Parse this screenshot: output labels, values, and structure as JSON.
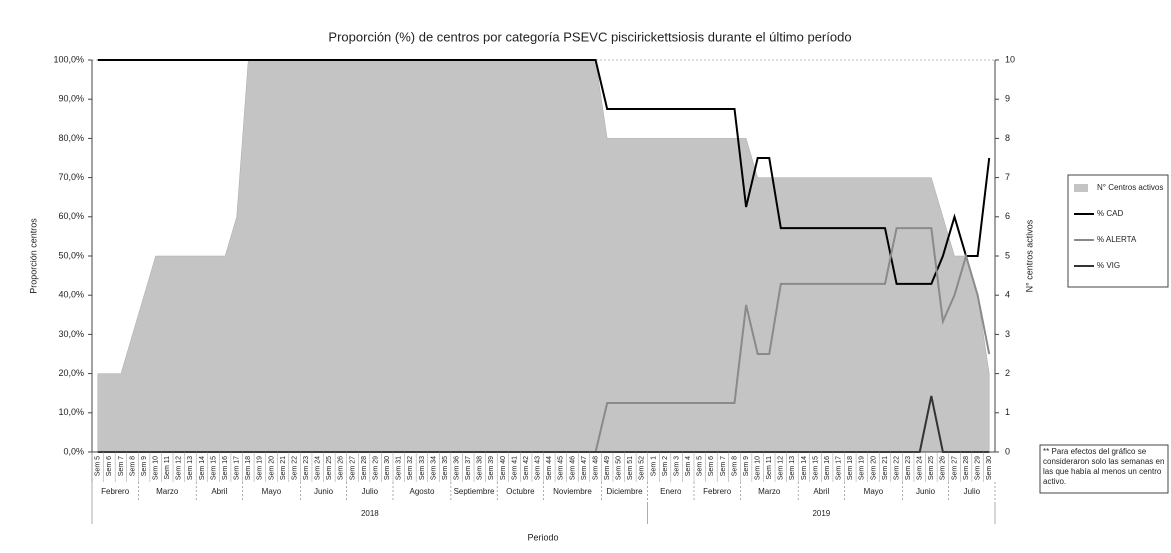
{
  "chart_data": {
    "type": "line",
    "title": "Proporción (%) de centros por categoría PSEVC piscirickettsiosis durante el último período",
    "y_label": "Proporción centros",
    "y2_label": "N° centros activos",
    "x_label": "Periodo",
    "note": "** Para efectos del gráfico se consideraron solo las semanas en las que había al menos un centro activo.",
    "categories": [
      "Sem 5",
      "Sem 6",
      "Sem 7",
      "Sem 8",
      "Sem 9",
      "Sem 10",
      "Sem 11",
      "Sem 12",
      "Sem 13",
      "Sem 14",
      "Sem 15",
      "Sem 16",
      "Sem 17",
      "Sem 18",
      "Sem 19",
      "Sem 20",
      "Sem 21",
      "Sem 22",
      "Sem 23",
      "Sem 24",
      "Sem 25",
      "Sem 26",
      "Sem 27",
      "Sem 28",
      "Sem 29",
      "Sem 30",
      "Sem 31",
      "Sem 32",
      "Sem 33",
      "Sem 34",
      "Sem 35",
      "Sem 36",
      "Sem 37",
      "Sem 38",
      "Sem 39",
      "Sem 40",
      "Sem 41",
      "Sem 42",
      "Sem 43",
      "Sem 44",
      "Sem 45",
      "Sem 46",
      "Sem 47",
      "Sem 48",
      "Sem 49",
      "Sem 50",
      "Sem 51",
      "Sem 52",
      "Sem 1",
      "Sem 2",
      "Sem 3",
      "Sem 4",
      "Sem 5",
      "Sem 6",
      "Sem 7",
      "Sem 8",
      "Sem 9",
      "Sem 10",
      "Sem 11",
      "Sem 12",
      "Sem 13",
      "Sem 14",
      "Sem 15",
      "Sem 16",
      "Sem 17",
      "Sem 18",
      "Sem 19",
      "Sem 20",
      "Sem 21",
      "Sem 22",
      "Sem 23",
      "Sem 24",
      "Sem 25",
      "Sem 26",
      "Sem 27",
      "Sem 28",
      "Sem 29",
      "Sem 30"
    ],
    "month_groups": [
      {
        "label": "Febrero",
        "weeks": 4
      },
      {
        "label": "Marzo",
        "weeks": 5
      },
      {
        "label": "Abril",
        "weeks": 4
      },
      {
        "label": "Mayo",
        "weeks": 5
      },
      {
        "label": "Junio",
        "weeks": 4
      },
      {
        "label": "Julio",
        "weeks": 4
      },
      {
        "label": "Agosto",
        "weeks": 5
      },
      {
        "label": "Septiembre",
        "weeks": 4
      },
      {
        "label": "Octubre",
        "weeks": 4
      },
      {
        "label": "Noviembre",
        "weeks": 5
      },
      {
        "label": "Diciembre",
        "weeks": 4
      },
      {
        "label": "Enero",
        "weeks": 4
      },
      {
        "label": "Febrero",
        "weeks": 4
      },
      {
        "label": "Marzo",
        "weeks": 5
      },
      {
        "label": "Abril",
        "weeks": 4
      },
      {
        "label": "Mayo",
        "weeks": 5
      },
      {
        "label": "Junio",
        "weeks": 4
      },
      {
        "label": "Julio",
        "weeks": 4
      }
    ],
    "year_groups": [
      {
        "label": "2018",
        "weeks": 48
      },
      {
        "label": "2019",
        "weeks": 30
      }
    ],
    "series": [
      {
        "name": "N° Centros activos",
        "kind": "area",
        "axis": "y2",
        "color": "#c4c4c4",
        "values": [
          2,
          2,
          2,
          3,
          4,
          5,
          5,
          5,
          5,
          5,
          5,
          5,
          6,
          10,
          10,
          10,
          10,
          10,
          10,
          10,
          10,
          10,
          10,
          10,
          10,
          10,
          10,
          10,
          10,
          10,
          10,
          10,
          10,
          10,
          10,
          10,
          10,
          10,
          10,
          10,
          10,
          10,
          10,
          10,
          8,
          8,
          8,
          8,
          8,
          8,
          8,
          8,
          8,
          8,
          8,
          8,
          8,
          7,
          7,
          7,
          7,
          7,
          7,
          7,
          7,
          7,
          7,
          7,
          7,
          7,
          7,
          7,
          7,
          6,
          5,
          5,
          4,
          2
        ]
      },
      {
        "name": "% CAD",
        "kind": "line",
        "color": "#000000",
        "values": [
          100,
          100,
          100,
          100,
          100,
          100,
          100,
          100,
          100,
          100,
          100,
          100,
          100,
          100,
          100,
          100,
          100,
          100,
          100,
          100,
          100,
          100,
          100,
          100,
          100,
          100,
          100,
          100,
          100,
          100,
          100,
          100,
          100,
          100,
          100,
          100,
          100,
          100,
          100,
          100,
          100,
          100,
          100,
          100,
          87.5,
          87.5,
          87.5,
          87.5,
          87.5,
          87.5,
          87.5,
          87.5,
          87.5,
          87.5,
          87.5,
          87.5,
          62.5,
          75,
          75,
          57.1,
          57.1,
          57.1,
          57.1,
          57.1,
          57.1,
          57.1,
          57.1,
          57.1,
          57.1,
          42.9,
          42.9,
          42.9,
          42.9,
          50,
          60,
          50,
          50,
          75
        ]
      },
      {
        "name": "% ALERTA",
        "kind": "line",
        "color": "#8a8a8a",
        "values": [
          0,
          0,
          0,
          0,
          0,
          0,
          0,
          0,
          0,
          0,
          0,
          0,
          0,
          0,
          0,
          0,
          0,
          0,
          0,
          0,
          0,
          0,
          0,
          0,
          0,
          0,
          0,
          0,
          0,
          0,
          0,
          0,
          0,
          0,
          0,
          0,
          0,
          0,
          0,
          0,
          0,
          0,
          0,
          0,
          12.5,
          12.5,
          12.5,
          12.5,
          12.5,
          12.5,
          12.5,
          12.5,
          12.5,
          12.5,
          12.5,
          12.5,
          37.5,
          25,
          25,
          42.9,
          42.9,
          42.9,
          42.9,
          42.9,
          42.9,
          42.9,
          42.9,
          42.9,
          42.9,
          57.1,
          57.1,
          57.1,
          57.1,
          33.3,
          40,
          50,
          40,
          25
        ]
      },
      {
        "name": "% VIG",
        "kind": "line",
        "color": "#333333",
        "values": [
          0,
          0,
          0,
          0,
          0,
          0,
          0,
          0,
          0,
          0,
          0,
          0,
          0,
          0,
          0,
          0,
          0,
          0,
          0,
          0,
          0,
          0,
          0,
          0,
          0,
          0,
          0,
          0,
          0,
          0,
          0,
          0,
          0,
          0,
          0,
          0,
          0,
          0,
          0,
          0,
          0,
          0,
          0,
          0,
          0,
          0,
          0,
          0,
          0,
          0,
          0,
          0,
          0,
          0,
          0,
          0,
          0,
          0,
          0,
          0,
          0,
          0,
          0,
          0,
          0,
          0,
          0,
          0,
          0,
          0,
          0,
          0,
          14.3,
          0,
          0,
          0,
          0,
          0
        ]
      }
    ],
    "ylim": [
      0,
      100
    ],
    "yticks": [
      {
        "value": 0,
        "label": "0,0%"
      },
      {
        "value": 10,
        "label": "10,0%"
      },
      {
        "value": 20,
        "label": "20,0%"
      },
      {
        "value": 30,
        "label": "30,0%"
      },
      {
        "value": 40,
        "label": "40,0%"
      },
      {
        "value": 50,
        "label": "50,0%"
      },
      {
        "value": 60,
        "label": "60,0%"
      },
      {
        "value": 70,
        "label": "70,0%"
      },
      {
        "value": 80,
        "label": "80,0%"
      },
      {
        "value": 90,
        "label": "90,0%"
      },
      {
        "value": 100,
        "label": "100,0%"
      }
    ],
    "y2lim": [
      0,
      10
    ],
    "y2ticks": [
      0,
      1,
      2,
      3,
      4,
      5,
      6,
      7,
      8,
      9,
      10
    ]
  }
}
